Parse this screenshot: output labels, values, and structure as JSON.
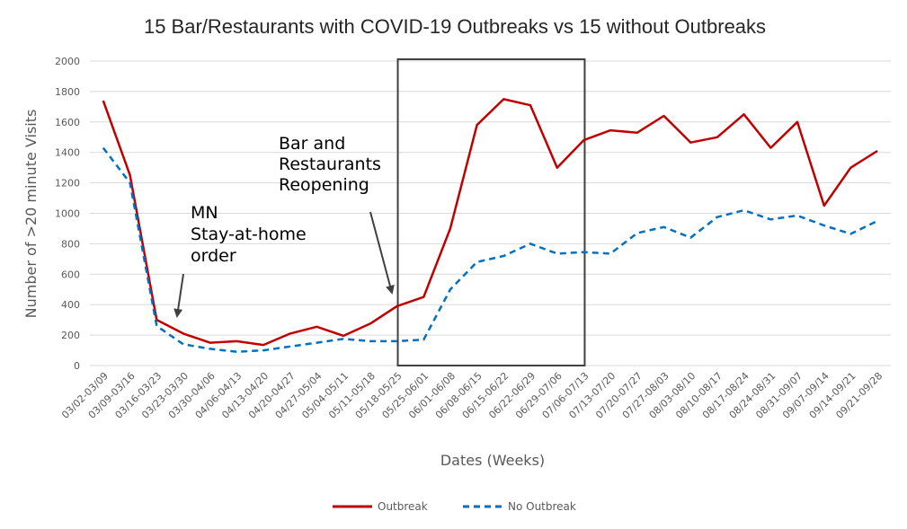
{
  "chart_data": {
    "type": "line",
    "title": "15 Bar/Restaurants with COVID-19 Outbreaks vs 15 without Outbreaks",
    "xlabel": "Dates (Weeks)",
    "ylabel": "Number of >20 minute Visits",
    "ylim": [
      0,
      2000
    ],
    "yticks": [
      0,
      200,
      400,
      600,
      800,
      1000,
      1200,
      1400,
      1600,
      1800,
      2000
    ],
    "grid": true,
    "legend_position": "bottom",
    "categories": [
      "03/02-03/09",
      "03/09-03/16",
      "03/16-03/23",
      "03/23-03/30",
      "03/30-04/06",
      "04/06-04/13",
      "04/13-04/20",
      "04/20-04/27",
      "04/27-05/04",
      "05/04-05/11",
      "05/11-05/18",
      "05/18-05/25",
      "05/25-06/01",
      "06/01-06/08",
      "06/08-06/15",
      "06/15-06/22",
      "06/22-06/29",
      "06/29-07/06",
      "07/06-07/13",
      "07/13-07/20",
      "07/20-07/27",
      "07/27-08/03",
      "08/03-08/10",
      "08/10-08/17",
      "08/17-08/24",
      "08/24-08/31",
      "08/31-09/07",
      "09/07-09/14",
      "09/14-09/21",
      "09/21-09/28"
    ],
    "series": [
      {
        "name": "Outbreak",
        "color": "#c00000",
        "style": "solid",
        "values": [
          1740,
          1250,
          300,
          210,
          150,
          160,
          135,
          210,
          255,
          195,
          275,
          390,
          450,
          900,
          1580,
          1750,
          1710,
          1300,
          1480,
          1545,
          1530,
          1640,
          1465,
          1500,
          1650,
          1430,
          1600,
          1050,
          1300,
          1410
        ]
      },
      {
        "name": "No Outbreak",
        "color": "#0070c0",
        "style": "dashed",
        "values": [
          1430,
          1200,
          260,
          140,
          110,
          90,
          100,
          125,
          150,
          175,
          160,
          160,
          170,
          500,
          680,
          720,
          800,
          735,
          745,
          735,
          870,
          910,
          840,
          975,
          1020,
          960,
          985,
          920,
          865,
          950
        ]
      }
    ],
    "annotations": [
      {
        "lines": [
          "MN",
          "Stay-at-home",
          "order"
        ],
        "target_category": "03/23-03/30"
      },
      {
        "lines": [
          "Bar and",
          "Restaurants",
          "Reopening"
        ],
        "target_category": "05/18-05/25"
      }
    ],
    "highlight_box": {
      "from_category": "05/18-05/25",
      "to_category": "07/06-07/13",
      "y_range": [
        0,
        2000
      ]
    }
  }
}
